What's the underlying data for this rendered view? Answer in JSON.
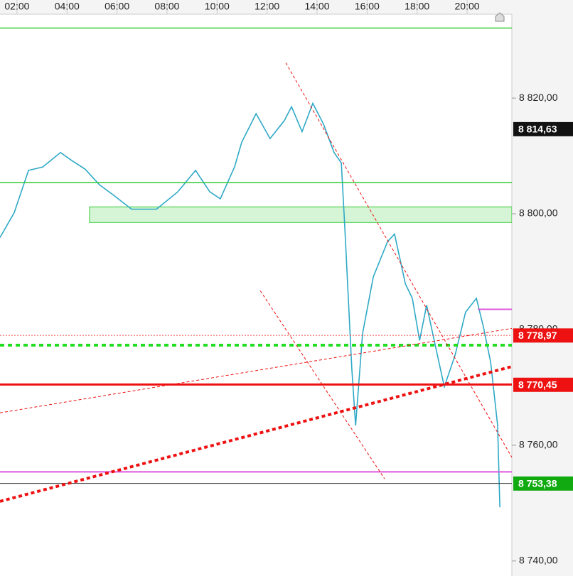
{
  "chart_data": {
    "type": "line",
    "xlim": [
      1.32,
      21.79
    ],
    "ylim": [
      8737.4,
      8834.5
    ],
    "xticks": [
      {
        "value": 2,
        "label": "02:00"
      },
      {
        "value": 4,
        "label": "04:00"
      },
      {
        "value": 6,
        "label": "06:00"
      },
      {
        "value": 8,
        "label": "08:00"
      },
      {
        "value": 10,
        "label": "10:00"
      },
      {
        "value": 12,
        "label": "12:00"
      },
      {
        "value": 14,
        "label": "14:00"
      },
      {
        "value": 16,
        "label": "16:00"
      },
      {
        "value": 18,
        "label": "18:00"
      },
      {
        "value": 20,
        "label": "20:00"
      }
    ],
    "yticks": [
      {
        "value": 8740,
        "label": "8 740,00"
      },
      {
        "value": 8760,
        "label": "8 760,00"
      },
      {
        "value": 8780,
        "label": "8 780,00"
      },
      {
        "value": 8800,
        "label": "8 800,00"
      },
      {
        "value": 8820,
        "label": "8 820,00"
      }
    ],
    "series": [
      {
        "color": "#2fa9c6",
        "x": [
          1.32,
          1.89,
          2.46,
          3.03,
          3.74,
          4.16,
          4.73,
          5.3,
          5.87,
          6.58,
          7.58,
          8.43,
          9.14,
          9.71,
          10.13,
          10.7,
          10.99,
          11.56,
          12.12,
          12.69,
          12.98,
          13.4,
          13.83,
          14.26,
          14.68,
          14.97,
          15.11,
          15.39,
          15.54,
          15.82,
          16.25,
          16.82,
          17.1,
          17.53,
          17.81,
          18.1,
          18.38,
          18.81,
          19.09,
          19.52,
          19.94,
          20.37,
          20.65,
          20.94,
          21.22,
          21.31
        ],
        "values": [
          8795.9,
          8800.2,
          8807.5,
          8808.1,
          8810.6,
          8809.3,
          8807.7,
          8805.0,
          8803.2,
          8800.8,
          8800.8,
          8803.8,
          8807.5,
          8803.8,
          8802.6,
          8808.1,
          8812.4,
          8817.3,
          8813.0,
          8816.1,
          8818.5,
          8814.2,
          8819.1,
          8815.5,
          8810.6,
          8808.8,
          8797.7,
          8773.2,
          8763.4,
          8779.3,
          8789.1,
          8795.2,
          8796.5,
          8787.9,
          8785.4,
          8778.1,
          8784.2,
          8775.6,
          8770.1,
          8775.6,
          8783.0,
          8785.4,
          8780.5,
          8774.4,
          8763.4,
          8749.3
        ]
      }
    ],
    "hlines": [
      {
        "value": 8832.1,
        "color": "#33cc33",
        "width": 1.5,
        "dash": "none"
      },
      {
        "value": 8805.4,
        "color": "#33cc33",
        "width": 1.5,
        "dash": "none"
      },
      {
        "value": 8779.0,
        "color": "#ee2222",
        "width": 0.8,
        "dash": "2 2"
      },
      {
        "value": 8777.3,
        "color": "#22dd22",
        "width": 4,
        "dash": "6 5"
      },
      {
        "value": 8770.5,
        "color": "#ee1111",
        "width": 3,
        "dash": "none"
      },
      {
        "value": 8755.4,
        "color": "#dd55dd",
        "width": 2,
        "dash": "none"
      },
      {
        "value": 8753.4,
        "color": "#333333",
        "width": 1,
        "dash": "none"
      },
      {
        "value": 8783.5,
        "color": "#dd55dd",
        "width": 2,
        "dash": "none",
        "x_from": 20.43
      }
    ],
    "zones": [
      {
        "x0": 4.9,
        "y": [
          8798.5,
          8801.2
        ],
        "color": "#33cc33"
      }
    ],
    "trendlines": [
      {
        "x": [
          1.32,
          21.79
        ],
        "y": [
          8750.3,
          8773.6
        ],
        "color": "#ee1111",
        "width": 4,
        "dash": "5 4"
      },
      {
        "x": [
          1.32,
          21.79
        ],
        "y": [
          8765.6,
          8780.2
        ],
        "color": "#ee1111",
        "width": 1,
        "dash": "4 3"
      },
      {
        "x": [
          12.75,
          21.79
        ],
        "y": [
          8826.1,
          8757.9
        ],
        "color": "#ee1111",
        "width": 1,
        "dash": "4 3"
      },
      {
        "x": [
          11.73,
          16.7
        ],
        "y": [
          8786.7,
          8754.2
        ],
        "color": "#ee1111",
        "width": 1,
        "dash": "4 3"
      }
    ],
    "price_labels": [
      {
        "value": 8814.63,
        "label": "8 814,63",
        "color": "#111111"
      },
      {
        "value": 8778.97,
        "label": "8 778,97",
        "color": "#ee1111"
      },
      {
        "value": 8770.45,
        "label": "8 770,45",
        "color": "#ee1111"
      },
      {
        "value": 8753.38,
        "label": "8 753,38",
        "color": "#11aa11"
      }
    ]
  }
}
